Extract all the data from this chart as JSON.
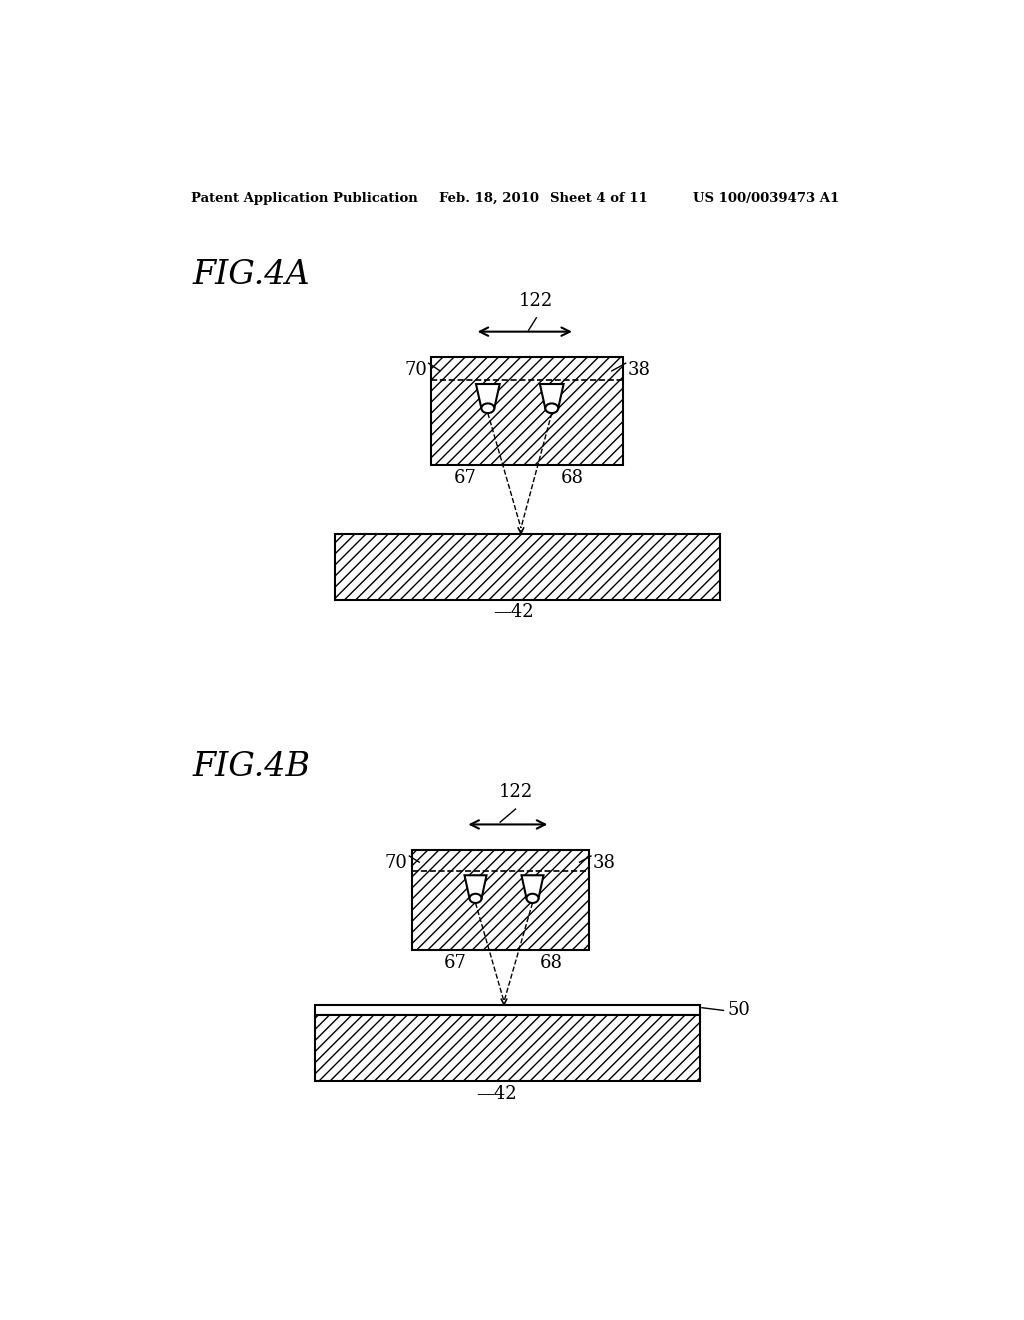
{
  "bg_color": "#ffffff",
  "header_text": "Patent Application Publication",
  "header_date": "Feb. 18, 2010",
  "header_sheet": "Sheet 4 of 11",
  "header_patent": "US 100/0039473 A1",
  "fig4a_label": "FIG.4A",
  "fig4b_label": "FIG.4B",
  "label_122_a": "122",
  "label_122_b": "122",
  "label_70_a": "70",
  "label_38_a": "38",
  "label_67_a": "67",
  "label_68_a": "68",
  "label_42_a": "42",
  "label_70_b": "70",
  "label_38_b": "38",
  "label_67_b": "67",
  "label_68_b": "68",
  "label_42_b": "42",
  "label_50_b": "50",
  "text_color": "#000000"
}
